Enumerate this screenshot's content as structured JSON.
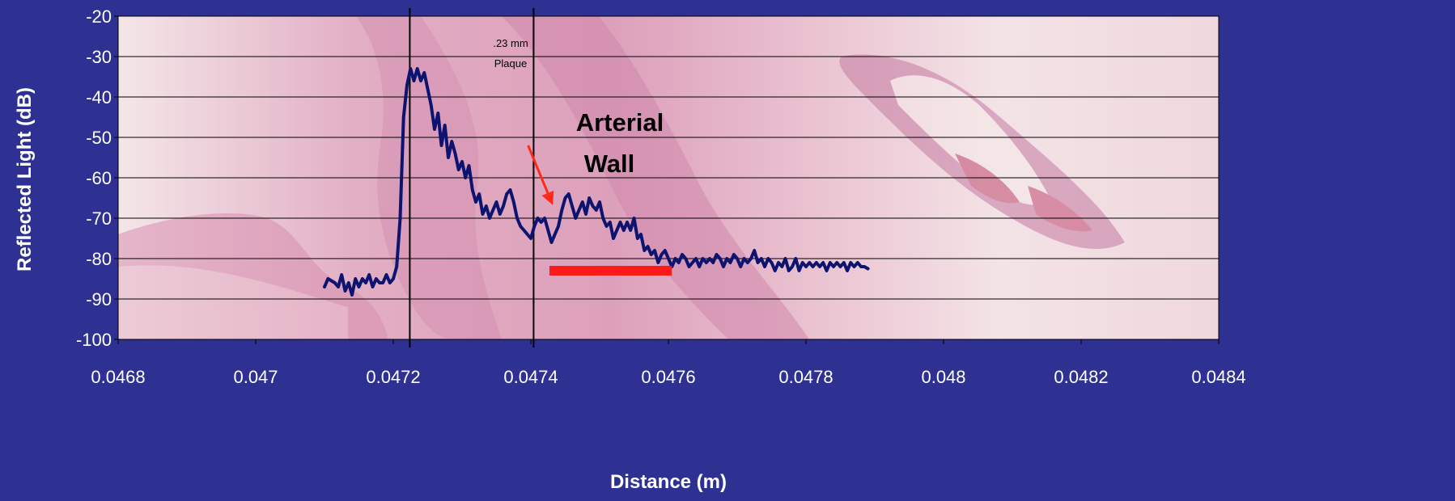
{
  "chart_data": {
    "type": "line",
    "xlabel": "Distance (m)",
    "ylabel": "Reflected Light (dB)",
    "xlim": [
      0.0468,
      0.0484
    ],
    "ylim": [
      -100,
      -20
    ],
    "x_ticks": [
      "0.0468",
      "0.047",
      "0.0472",
      "0.0474",
      "0.0476",
      "0.0478",
      "0.048",
      "0.0482",
      "0.0484"
    ],
    "y_ticks": [
      "-20",
      "-30",
      "-40",
      "-50",
      "-60",
      "-70",
      "-80",
      "-90",
      "-100"
    ],
    "grid": true,
    "legend": "none",
    "background": "histology image (H&E stained arterial tissue)",
    "series": [
      {
        "color": "#0d1470",
        "points": [
          [
            0.0471,
            -87
          ],
          [
            0.047105,
            -85
          ],
          [
            0.04711,
            -85.5
          ],
          [
            0.047115,
            -86
          ],
          [
            0.04712,
            -87
          ],
          [
            0.047125,
            -84
          ],
          [
            0.04713,
            -88
          ],
          [
            0.047135,
            -86
          ],
          [
            0.04714,
            -89
          ],
          [
            0.047145,
            -85
          ],
          [
            0.04715,
            -87
          ],
          [
            0.047155,
            -85
          ],
          [
            0.04716,
            -86
          ],
          [
            0.047165,
            -84
          ],
          [
            0.04717,
            -87
          ],
          [
            0.047175,
            -85
          ],
          [
            0.04718,
            -86
          ],
          [
            0.047185,
            -86
          ],
          [
            0.04719,
            -84
          ],
          [
            0.047195,
            -86
          ],
          [
            0.0472,
            -85
          ],
          [
            0.047205,
            -82
          ],
          [
            0.04721,
            -70
          ],
          [
            0.047215,
            -45
          ],
          [
            0.04722,
            -37
          ],
          [
            0.047225,
            -33
          ],
          [
            0.04723,
            -36
          ],
          [
            0.047235,
            -33
          ],
          [
            0.04724,
            -36
          ],
          [
            0.047245,
            -34
          ],
          [
            0.04725,
            -38
          ],
          [
            0.047255,
            -42
          ],
          [
            0.04726,
            -48
          ],
          [
            0.047265,
            -44
          ],
          [
            0.04727,
            -52
          ],
          [
            0.047275,
            -47
          ],
          [
            0.04728,
            -55
          ],
          [
            0.047285,
            -51
          ],
          [
            0.04729,
            -54
          ],
          [
            0.047295,
            -58
          ],
          [
            0.0473,
            -56
          ],
          [
            0.047305,
            -60
          ],
          [
            0.04731,
            -57
          ],
          [
            0.047315,
            -63
          ],
          [
            0.04732,
            -66
          ],
          [
            0.047325,
            -64
          ],
          [
            0.04733,
            -69
          ],
          [
            0.047335,
            -67
          ],
          [
            0.04734,
            -70
          ],
          [
            0.047345,
            -68
          ],
          [
            0.04735,
            -66
          ],
          [
            0.047355,
            -69
          ],
          [
            0.04736,
            -67
          ],
          [
            0.047365,
            -64
          ],
          [
            0.04737,
            -63
          ],
          [
            0.047375,
            -66
          ],
          [
            0.04738,
            -70
          ],
          [
            0.047385,
            -72
          ],
          [
            0.04739,
            -73
          ],
          [
            0.047395,
            -74
          ],
          [
            0.0474,
            -75
          ],
          [
            0.047405,
            -72
          ],
          [
            0.04741,
            -70
          ],
          [
            0.047415,
            -71
          ],
          [
            0.04742,
            -70
          ],
          [
            0.047425,
            -73
          ],
          [
            0.04743,
            -76
          ],
          [
            0.047435,
            -74
          ],
          [
            0.04744,
            -72
          ],
          [
            0.047445,
            -68
          ],
          [
            0.04745,
            -65
          ],
          [
            0.047455,
            -64
          ],
          [
            0.04746,
            -67
          ],
          [
            0.047465,
            -70
          ],
          [
            0.04747,
            -68
          ],
          [
            0.047475,
            -66
          ],
          [
            0.04748,
            -69
          ],
          [
            0.047485,
            -65
          ],
          [
            0.04749,
            -67
          ],
          [
            0.047495,
            -68
          ],
          [
            0.0475,
            -66
          ],
          [
            0.047505,
            -70
          ],
          [
            0.04751,
            -72
          ],
          [
            0.047515,
            -71
          ],
          [
            0.04752,
            -75
          ],
          [
            0.047525,
            -73
          ],
          [
            0.04753,
            -71
          ],
          [
            0.047535,
            -73
          ],
          [
            0.04754,
            -71
          ],
          [
            0.047545,
            -73
          ],
          [
            0.04755,
            -70
          ],
          [
            0.047555,
            -75
          ],
          [
            0.04756,
            -74
          ],
          [
            0.047565,
            -78
          ],
          [
            0.04757,
            -77
          ],
          [
            0.047575,
            -79
          ],
          [
            0.04758,
            -78
          ],
          [
            0.047585,
            -81
          ],
          [
            0.04759,
            -79
          ],
          [
            0.047595,
            -78
          ],
          [
            0.0476,
            -80
          ],
          [
            0.047605,
            -82
          ],
          [
            0.04761,
            -80
          ],
          [
            0.047615,
            -81
          ],
          [
            0.04762,
            -79
          ],
          [
            0.047625,
            -80
          ],
          [
            0.04763,
            -82
          ],
          [
            0.047635,
            -81
          ],
          [
            0.04764,
            -80
          ],
          [
            0.047645,
            -82
          ],
          [
            0.04765,
            -80
          ],
          [
            0.047655,
            -81
          ],
          [
            0.04766,
            -80
          ],
          [
            0.047665,
            -81
          ],
          [
            0.04767,
            -79
          ],
          [
            0.047675,
            -80
          ],
          [
            0.04768,
            -82
          ],
          [
            0.047685,
            -80
          ],
          [
            0.04769,
            -81
          ],
          [
            0.047695,
            -79
          ],
          [
            0.0477,
            -80
          ],
          [
            0.047705,
            -82
          ],
          [
            0.04771,
            -80
          ],
          [
            0.047715,
            -81
          ],
          [
            0.04772,
            -80
          ],
          [
            0.047725,
            -78
          ],
          [
            0.04773,
            -81
          ],
          [
            0.047735,
            -80
          ],
          [
            0.04774,
            -82
          ],
          [
            0.047745,
            -80
          ],
          [
            0.04775,
            -81
          ],
          [
            0.047755,
            -83
          ],
          [
            0.04776,
            -81
          ],
          [
            0.047765,
            -82
          ],
          [
            0.04777,
            -80
          ],
          [
            0.047775,
            -83
          ],
          [
            0.04778,
            -82
          ],
          [
            0.047785,
            -80
          ],
          [
            0.04779,
            -83
          ],
          [
            0.047795,
            -81
          ],
          [
            0.0478,
            -82
          ],
          [
            0.047805,
            -81
          ],
          [
            0.04781,
            -82
          ],
          [
            0.047815,
            -81
          ],
          [
            0.04782,
            -82
          ],
          [
            0.047825,
            -81
          ],
          [
            0.04783,
            -83
          ],
          [
            0.047835,
            -81
          ],
          [
            0.04784,
            -82
          ],
          [
            0.047845,
            -81
          ],
          [
            0.04785,
            -82
          ],
          [
            0.047855,
            -81
          ],
          [
            0.04786,
            -83
          ],
          [
            0.047865,
            -81
          ],
          [
            0.04787,
            -82
          ],
          [
            0.047875,
            -81
          ],
          [
            0.04788,
            -82
          ],
          [
            0.047885,
            -82
          ],
          [
            0.04789,
            -82.5
          ]
        ]
      }
    ],
    "vertical_lines": [
      0.047224,
      0.047404
    ],
    "annotations": {
      "measurement_value": ".23 mm",
      "measurement_label": "Plaque",
      "arterial_line1": "Arterial",
      "arterial_line2": "Wall",
      "arrow_color": "#ff2a1a",
      "bar_color": "#ff1a1a",
      "arrow_from": [
        0.047396,
        -52
      ],
      "arrow_to": [
        0.04743,
        -66
      ],
      "bar_range": [
        0.047427,
        0.047605
      ],
      "bar_y": -83
    }
  }
}
